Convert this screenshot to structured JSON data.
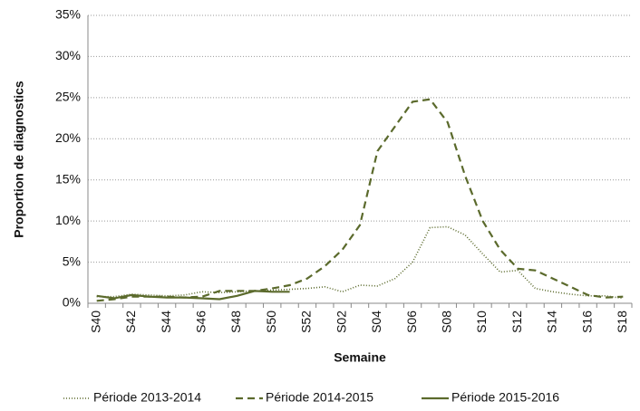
{
  "chart_data": {
    "type": "line",
    "y_label": "Proportion de diagnostics",
    "x_label": "Semaine",
    "categories": [
      "S40",
      null,
      "S42",
      null,
      "S44",
      null,
      "S46",
      null,
      "S48",
      null,
      "S50",
      null,
      "S52",
      null,
      "S02",
      null,
      "S04",
      null,
      "S06",
      null,
      "S08",
      null,
      "S10",
      null,
      "S12",
      null,
      "S14",
      null,
      "S16",
      null,
      "S18"
    ],
    "series": [
      {
        "name": "Période 2013-2014",
        "color": "#5b6a2c",
        "style": "dotted",
        "values": [
          0.8,
          0.8,
          1.1,
          1.0,
          0.9,
          1.0,
          1.4,
          1.3,
          1.4,
          1.5,
          1.6,
          1.7,
          1.8,
          2.0,
          1.4,
          2.2,
          2.1,
          3.0,
          5.0,
          9.2,
          9.3,
          8.3,
          6.0,
          3.8,
          4.0,
          1.8,
          1.4,
          1.1,
          0.9,
          0.9,
          0.6
        ]
      },
      {
        "name": "Période 2014-2015",
        "color": "#5b6a2c",
        "style": "dashed",
        "values": [
          0.3,
          0.5,
          0.8,
          0.8,
          0.8,
          0.7,
          0.8,
          1.5,
          1.5,
          1.5,
          1.8,
          2.2,
          3.0,
          4.5,
          6.5,
          9.5,
          18.5,
          21.5,
          24.5,
          24.8,
          22.0,
          15.5,
          10.0,
          6.5,
          4.2,
          4.0,
          3.0,
          2.0,
          1.0,
          0.7,
          0.8
        ]
      },
      {
        "name": "Période 2015-2016",
        "color": "#5b6a2c",
        "style": "solid",
        "values": [
          0.9,
          0.6,
          1.0,
          0.8,
          0.7,
          0.7,
          0.6,
          0.5,
          0.9,
          1.5,
          1.4,
          1.4,
          null,
          null,
          null,
          null,
          null,
          null,
          null,
          null,
          null,
          null,
          null,
          null,
          null,
          null,
          null,
          null,
          null,
          null,
          null
        ]
      }
    ],
    "ylim": [
      0,
      35
    ],
    "yticks": [
      {
        "value": 0,
        "label": "0%"
      },
      {
        "value": 5,
        "label": "5%"
      },
      {
        "value": 10,
        "label": "10%"
      },
      {
        "value": 15,
        "label": "15%"
      },
      {
        "value": 20,
        "label": "20%"
      },
      {
        "value": 25,
        "label": "25%"
      },
      {
        "value": 30,
        "label": "30%"
      },
      {
        "value": 35,
        "label": "35%"
      }
    ],
    "grid": true,
    "legend": "bottom"
  }
}
